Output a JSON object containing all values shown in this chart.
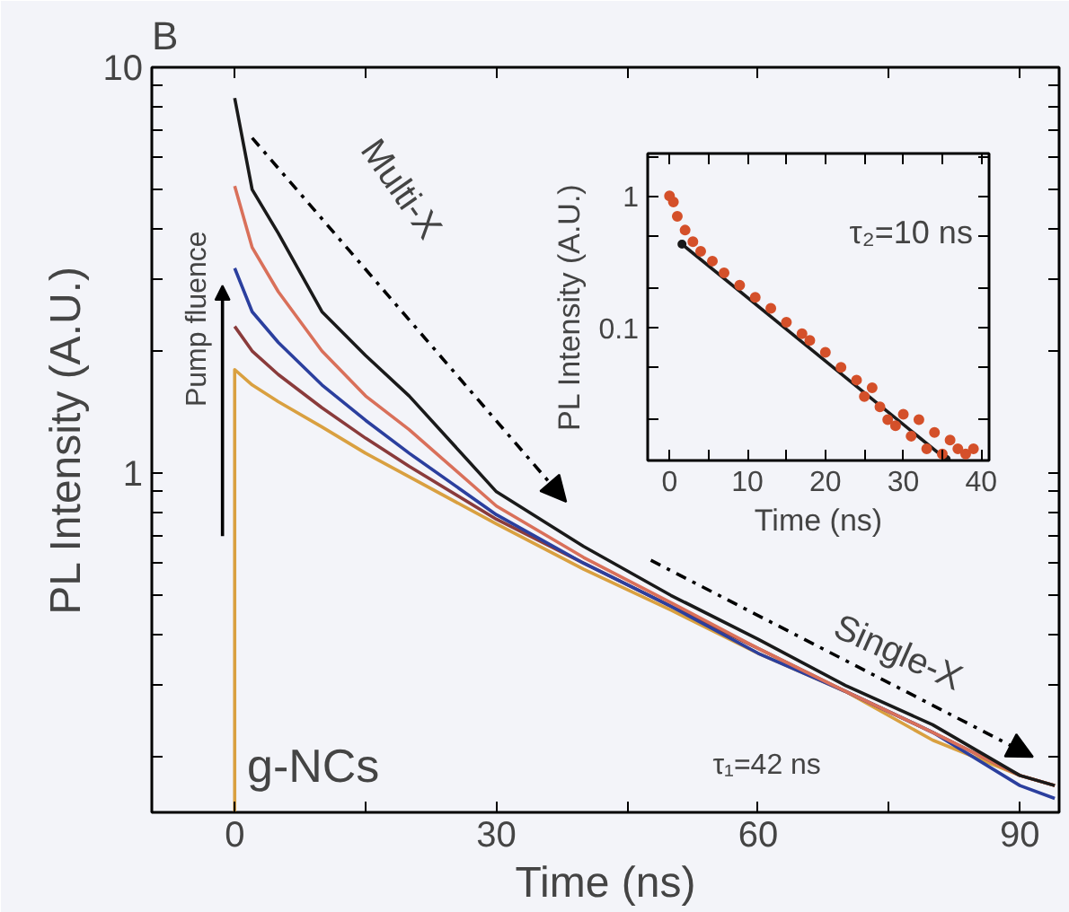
{
  "chart_data": [
    {
      "type": "line",
      "title": "B",
      "xlabel": "Time (ns)",
      "ylabel": "PL Intensity (A.U.)",
      "log": "y",
      "xlim": [
        -9.5,
        94.5
      ],
      "ylim": [
        0.146,
        10
      ],
      "xticks": [
        0,
        {
          "value": 15,
          "label": null
        },
        30,
        {
          "value": 45,
          "label": null
        },
        60,
        {
          "value": 75,
          "label": null
        },
        90
      ],
      "yticks": [
        {
          "value": 0.2,
          "label": null
        },
        {
          "value": 0.3,
          "label": null
        },
        {
          "value": 0.4,
          "label": null
        },
        {
          "value": 0.5,
          "label": null
        },
        {
          "value": 0.6,
          "label": null
        },
        {
          "value": 0.7,
          "label": null
        },
        {
          "value": 0.8,
          "label": null
        },
        {
          "value": 0.9,
          "label": null
        },
        1,
        {
          "value": 2,
          "label": null
        },
        {
          "value": 3,
          "label": null
        },
        {
          "value": 4,
          "label": null
        },
        {
          "value": 5,
          "label": null
        },
        {
          "value": 6,
          "label": null
        },
        {
          "value": 7,
          "label": null
        },
        {
          "value": 8,
          "label": null
        },
        {
          "value": 9,
          "label": null
        },
        10
      ],
      "grid": false,
      "line_style": "solid",
      "marker": "none",
      "x": [
        0,
        2,
        5,
        10,
        15,
        20,
        30,
        40,
        50,
        60,
        70,
        80,
        90,
        94
      ],
      "series": [
        {
          "color": "#d9a040",
          "x": [
            0,
            0,
            2,
            5,
            10,
            15,
            20,
            30,
            40,
            50,
            60,
            70,
            80,
            90,
            94
          ],
          "values": [
            0.146,
            1.8,
            1.65,
            1.5,
            1.3,
            1.12,
            0.98,
            0.75,
            0.58,
            0.46,
            0.36,
            0.29,
            0.22,
            0.18,
            0.17
          ]
        },
        {
          "color": "#8a3b3b",
          "values": [
            2.3,
            2.0,
            1.75,
            1.45,
            1.22,
            1.04,
            0.77,
            0.6,
            0.47,
            0.37,
            0.29,
            0.23,
            0.18,
            0.17
          ]
        },
        {
          "color": "#2b3f9e",
          "values": [
            3.2,
            2.5,
            2.1,
            1.65,
            1.35,
            1.12,
            0.79,
            0.6,
            0.47,
            0.36,
            0.29,
            0.23,
            0.17,
            0.158
          ]
        },
        {
          "color": "#d9705a",
          "values": [
            5.1,
            3.6,
            2.8,
            2.0,
            1.55,
            1.28,
            0.83,
            0.62,
            0.48,
            0.37,
            0.29,
            0.23,
            0.18,
            0.17
          ]
        },
        {
          "color": "#1a1a1a",
          "values": [
            8.4,
            5.0,
            3.9,
            2.5,
            1.95,
            1.55,
            0.9,
            0.66,
            0.5,
            0.39,
            0.3,
            0.24,
            0.18,
            0.17
          ]
        }
      ],
      "annotations": [
        "Multi-X",
        "Pump fluence",
        "Single-X",
        "g-NCs",
        "τ₁=42 ns"
      ]
    },
    {
      "type": "scatter",
      "xlabel": "Time (ns)",
      "ylabel": "PL Intensity (A.U.)",
      "log": "y",
      "xlim": [
        -2.8,
        41
      ],
      "ylim": [
        0.0098,
        2.1
      ],
      "xticks": [
        0,
        {
          "value": 5,
          "label": null
        },
        10,
        {
          "value": 15,
          "label": null
        },
        20,
        {
          "value": 25,
          "label": null
        },
        30,
        {
          "value": 35,
          "label": null
        },
        40
      ],
      "yticks": [
        {
          "value": 0.02,
          "label": null
        },
        {
          "value": 0.05,
          "label": null
        },
        0.1,
        {
          "value": 0.2,
          "label": null
        },
        {
          "value": 0.5,
          "label": null
        },
        1,
        {
          "value": 2,
          "label": null
        }
      ],
      "grid": false,
      "marker": "circle",
      "series": [
        {
          "color": "#d4502a",
          "x": [
            0,
            0.5,
            1,
            2,
            3,
            4,
            5.5,
            7,
            9,
            11,
            13,
            15,
            17,
            18,
            20,
            22,
            24,
            25,
            26,
            27,
            28,
            29,
            30,
            31,
            32,
            33,
            34,
            35,
            36,
            37,
            38,
            39
          ],
          "values": [
            1.0,
            0.9,
            0.7,
            0.55,
            0.45,
            0.38,
            0.32,
            0.26,
            0.21,
            0.17,
            0.14,
            0.11,
            0.09,
            0.08,
            0.065,
            0.05,
            0.04,
            0.03,
            0.035,
            0.025,
            0.02,
            0.018,
            0.022,
            0.015,
            0.02,
            0.012,
            0.016,
            0.011,
            0.014,
            0.012,
            0.011,
            0.012
          ]
        },
        {
          "type": "line",
          "color": "#1a1a1a",
          "x": [
            1.6,
            35.5
          ],
          "values": [
            0.43,
            0.01
          ]
        }
      ],
      "annotations": [
        "τ₂=10 ns"
      ]
    }
  ]
}
